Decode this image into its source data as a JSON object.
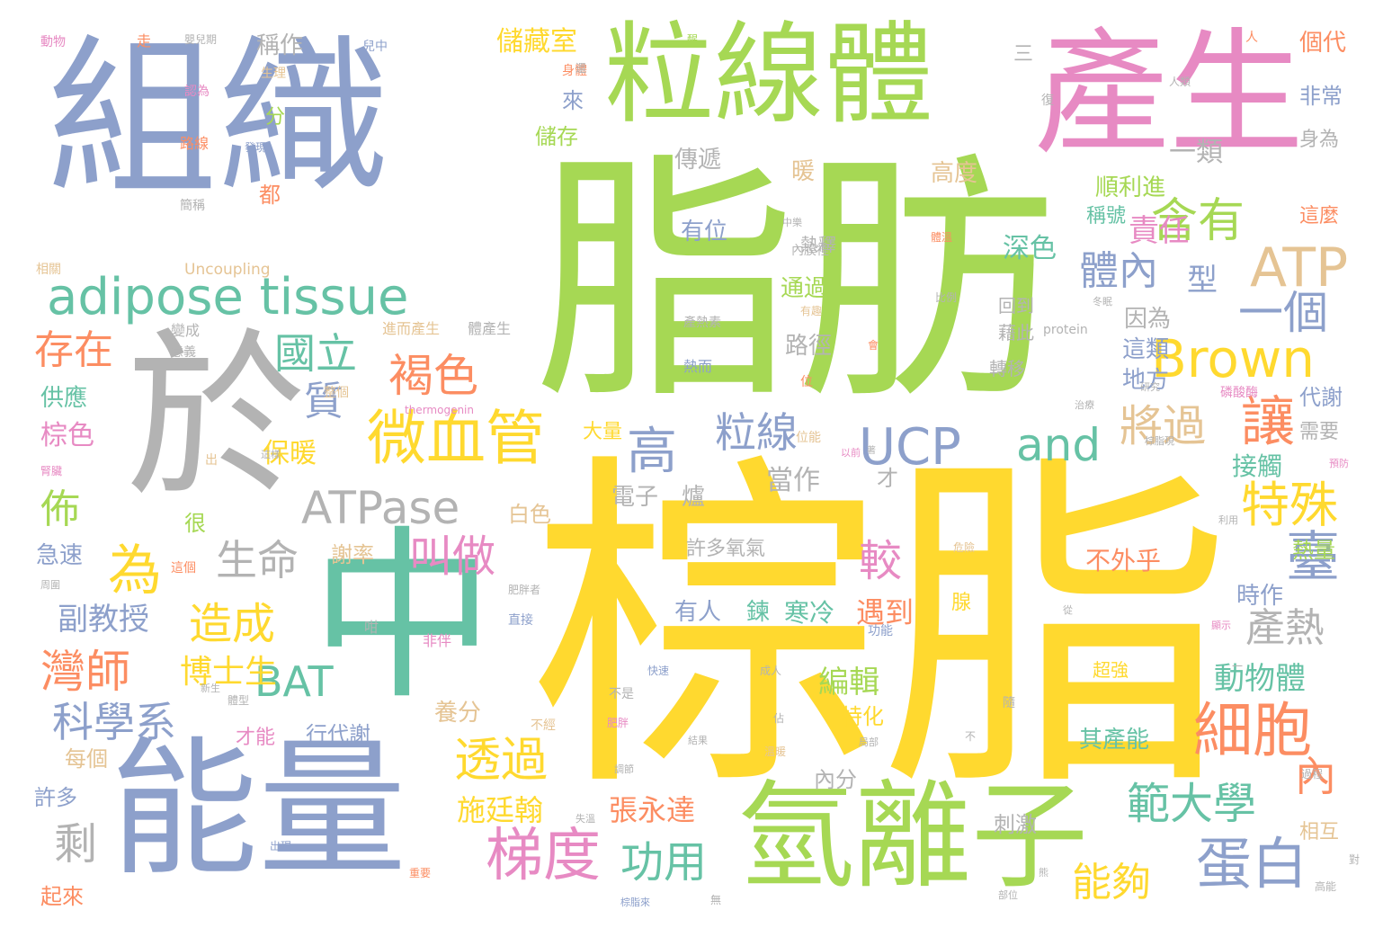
{
  "palette": {
    "blue": "#8da0cb",
    "green": "#a6d854",
    "pink": "#e78ac3",
    "yellow": "#ffd92f",
    "teal": "#66c2a5",
    "gray": "#b3b3b3",
    "orange": "#fc8d62",
    "tan": "#e5c494"
  },
  "words": {
    "w001": "組織",
    "w002": "粒線體",
    "w003": "產生",
    "w004": "脂肪",
    "w005": "棕脂",
    "w006": "中",
    "w007": "於",
    "w008": "能量",
    "w009": "氫離子",
    "w010": "adipose tissue",
    "w011": "ATP",
    "w012": "Brown",
    "w013": "UCP",
    "w014": "ATPase",
    "w015": "and",
    "w016": "BAT",
    "w017": "微血管",
    "w018": "細胞",
    "w019": "梯度",
    "w020": "蛋白",
    "w021": "範大學",
    "w022": "透過",
    "w023": "褐色",
    "w024": "國立",
    "w025": "含有",
    "w026": "體內",
    "w027": "一個",
    "w028": "讓",
    "w029": "將過",
    "w030": "特殊",
    "w031": "臺",
    "w032": "叫做",
    "w033": "造成",
    "w034": "灣師",
    "w035": "科學系",
    "w036": "生命",
    "w037": "為",
    "w038": "存在",
    "w039": "高",
    "w040": "粒線",
    "w041": "質",
    "w042": "功用",
    "w043": "能夠",
    "w044": "剩",
    "w045": "較",
    "w046": "產熱",
    "w047": "博士生",
    "w048": "副教授",
    "w049": "佈",
    "w050": "施廷翰",
    "w051": "張永達",
    "w052": "內",
    "w053": "責任",
    "w054": "深色",
    "w055": "型",
    "w056": "動物體",
    "w057": "編輯",
    "w058": "遇到",
    "w059": "寒冷",
    "w060": "鍊",
    "w061": "有人",
    "w062": "其產能",
    "w063": "不外乎",
    "w064": "時作",
    "w065": "接觸",
    "w066": "一類",
    "w067": "順利進",
    "w068": "稱號",
    "w069": "高度",
    "w070": "暖",
    "w071": "傳遞",
    "w072": "有位",
    "w073": "熱釋",
    "w074": "通過",
    "w075": "路徑",
    "w076": "因為",
    "w077": "這類",
    "w078": "地方",
    "w079": "藉此",
    "w080": "回到",
    "w081": "轉移",
    "w082": "大量",
    "w083": "電子",
    "w084": "爐",
    "w085": "當作",
    "w086": "保暖",
    "w087": "白色",
    "w088": "謝率",
    "w089": "許多氧氣",
    "w090": "才",
    "w091": "特化",
    "w092": "養分",
    "w093": "行代謝",
    "w094": "才能",
    "w095": "內分",
    "w096": "刺激",
    "w097": "超強",
    "w098": "腺",
    "w099": "每個",
    "w100": "許多",
    "w101": "起來",
    "w102": "急速",
    "w103": "供應",
    "w104": "棕色",
    "w105": "很",
    "w106": "儲藏室",
    "w107": "儲存",
    "w108": "來",
    "w109": "分",
    "w110": "稱作",
    "w111": "都",
    "w112": "三",
    "w113": "個代",
    "w114": "非常",
    "w115": "身為",
    "w116": "這麼",
    "w117": "代謝",
    "w118": "熱量",
    "w119": "需要",
    "w120": "相互",
    "w121": "Uncoupling",
    "w122": "protein",
    "w123": "thermogenin",
    "w124": "進而產生",
    "w125": "體產生",
    "w126": "產熱素",
    "w127": "熱而",
    "w128": "整個",
    "w129": "變成",
    "w130": "意義",
    "w131": "位能",
    "w132": "內膜裡",
    "w133": "中樂",
    "w134": "比例",
    "w135": "有趣",
    "w136": "會",
    "w137": "位",
    "w138": "研究",
    "w139": "磷酸酶",
    "w140": "治療",
    "w141": "棕脂現",
    "w142": "預防",
    "w143": "以前",
    "w144": "著",
    "w145": "危險",
    "w146": "利用",
    "w147": "肥胖者",
    "w148": "直接",
    "w149": "咁",
    "w150": "非伴",
    "w151": "功能",
    "w152": "從",
    "w153": "顯示",
    "w154": "成人",
    "w155": "快速",
    "w156": "隨",
    "w157": "不是",
    "w158": "不經",
    "w159": "肥胖",
    "w160": "佔",
    "w161": "溫暖",
    "w162": "局部",
    "w163": "不",
    "w164": "結果",
    "w165": "調節",
    "w166": "失溫",
    "w167": "重要",
    "w168": "出現",
    "w169": "棕脂來",
    "w170": "無",
    "w171": "部位",
    "w172": "熊",
    "w173": "對",
    "w174": "高能",
    "w175": "過程",
    "w176": "體型",
    "w177": "新生",
    "w178": "這個",
    "w179": "周圍",
    "w180": "相關",
    "w181": "簡稱",
    "w182": "路線",
    "w183": "認為",
    "w184": "生理",
    "w185": "動物",
    "w186": "走",
    "w187": "嬰兒期",
    "w188": "兒中",
    "w189": "醒",
    "w190": "身體",
    "w191": "復",
    "w192": "人類",
    "w193": "人",
    "w194": "冬眠",
    "w195": "發現",
    "w196": "這樣",
    "w197": "出",
    "w198": "腎臟",
    "w199": "體溫",
    "w200": "還",
    "w201": "一"
  }
}
